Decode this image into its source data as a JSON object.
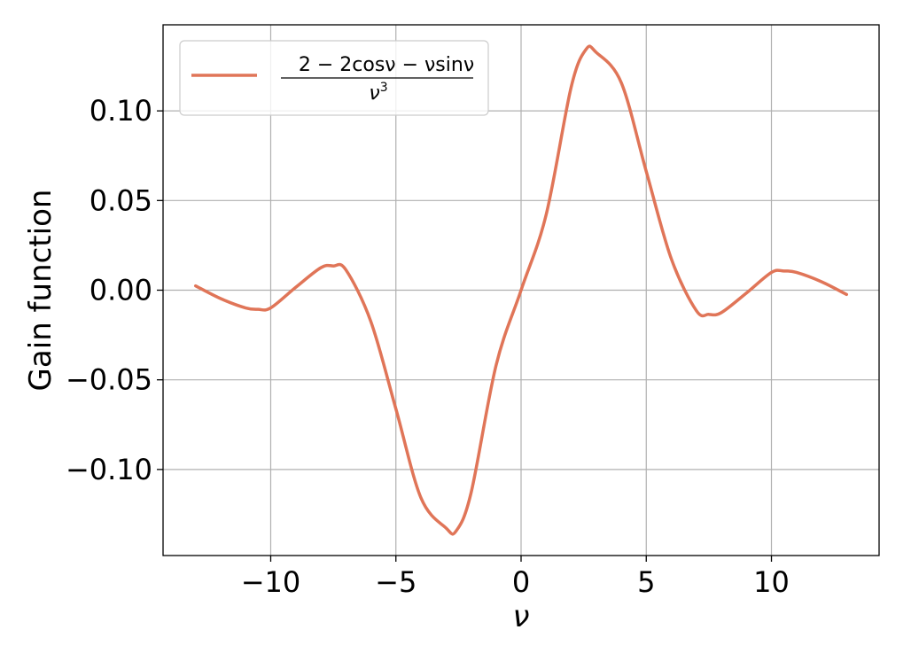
{
  "chart_data": {
    "type": "line",
    "title": "",
    "xlabel": "ν",
    "ylabel": "Gain function",
    "xlim": [
      -14.3,
      14.3
    ],
    "ylim": [
      -0.148,
      0.148
    ],
    "x_ticks": [
      -10,
      -5,
      0,
      5,
      10
    ],
    "x_tick_labels": [
      "−10",
      "−5",
      "0",
      "5",
      "10"
    ],
    "y_ticks": [
      -0.1,
      -0.05,
      0.0,
      0.05,
      0.1
    ],
    "y_tick_labels": [
      "−0.10",
      "−0.05",
      "0.00",
      "0.05",
      "0.10"
    ],
    "grid": true,
    "legend_position": "top-left",
    "legend": {
      "numerator": "2 − 2cosν − νsinν",
      "denominator_base": "ν",
      "denominator_exp": "3"
    },
    "series": [
      {
        "name": "(2 − 2cosν − νsinν)/ν³",
        "color": "#E07558",
        "x": [
          -13.0,
          -12.0,
          -11.0,
          -10.5,
          -10.0,
          -9.0,
          -8.0,
          -7.5,
          -7.0,
          -6.0,
          -5.0,
          -4.0,
          -3.0,
          -2.6,
          -2.0,
          -1.0,
          0.0,
          1.0,
          2.0,
          2.6,
          3.0,
          4.0,
          5.0,
          6.0,
          7.0,
          7.5,
          8.0,
          9.0,
          10.0,
          10.5,
          11.0,
          12.0,
          13.0
        ],
        "y": [
          0.0024,
          -0.0047,
          -0.0099,
          -0.0107,
          -0.0099,
          0.0016,
          0.0125,
          0.0135,
          0.0114,
          -0.0175,
          -0.0662,
          -0.1158,
          -0.1326,
          -0.1344,
          -0.1132,
          -0.042,
          0.0,
          0.042,
          0.1132,
          0.1344,
          0.1326,
          0.1158,
          0.0662,
          0.0175,
          -0.0114,
          -0.0135,
          -0.0125,
          -0.0016,
          0.0099,
          0.0107,
          0.0099,
          0.0047,
          -0.0024
        ]
      }
    ]
  }
}
